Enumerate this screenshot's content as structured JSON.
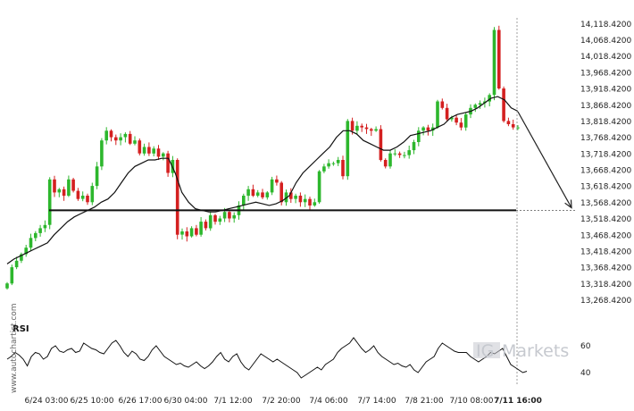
{
  "chart_data": [
    {
      "type": "candlestick",
      "title": "",
      "xlabel": "",
      "ylabel": "",
      "ylim": [
        13218.42,
        14128.42
      ],
      "yticks": [
        "14,118.4200",
        "14,068.4200",
        "14,018.4200",
        "13,968.4200",
        "13,918.4200",
        "13,868.4200",
        "13,818.4200",
        "13,768.4200",
        "13,718.4200",
        "13,668.4200",
        "13,618.4200",
        "13,568.4200",
        "13,518.4200",
        "13,468.4200",
        "13,418.4200",
        "13,368.4200",
        "13,318.4200",
        "13,268.4200"
      ],
      "xticks": [
        "6/24 03:00",
        "6/25 10:00",
        "6/26 17:00",
        "6/30 04:00",
        "7/1 12:00",
        "7/2 20:00",
        "7/4 06:00",
        "7/7 14:00",
        "7/8 21:00",
        "7/10 08:00",
        "7/11 16:00"
      ],
      "current_time_label": "7/11 16:00",
      "support_level": 13545,
      "forecast_target": 13553,
      "close_path": [
        13320,
        13370,
        13390,
        13410,
        13430,
        13460,
        13475,
        13490,
        13500,
        13640,
        13600,
        13610,
        13590,
        13640,
        13605,
        13580,
        13590,
        13570,
        13620,
        13680,
        13760,
        13790,
        13770,
        13760,
        13770,
        13780,
        13750,
        13760,
        13720,
        13740,
        13720,
        13735,
        13710,
        13720,
        13660,
        13700,
        13470,
        13480,
        13465,
        13490,
        13470,
        13510,
        13490,
        13530,
        13510,
        13520,
        13540,
        13520,
        13530,
        13560,
        13590,
        13610,
        13590,
        13600,
        13585,
        13600,
        13640,
        13630,
        13570,
        13600,
        13580,
        13590,
        13570,
        13580,
        13560,
        13570,
        13665,
        13680,
        13690,
        13690,
        13700,
        13650,
        13820,
        13790,
        13805,
        13800,
        13795,
        13790,
        13795,
        13700,
        13680,
        13720,
        13720,
        13715,
        13715,
        13730,
        13755,
        13790,
        13800,
        13790,
        13800,
        13880,
        13860,
        13825,
        13830,
        13815,
        13800,
        13840,
        13860,
        13870,
        13875,
        13880,
        13900,
        14100,
        13920,
        13820,
        13810,
        13800,
        13800
      ],
      "ma_path": [
        13380,
        13395,
        13405,
        13415,
        13425,
        13435,
        13445,
        13470,
        13490,
        13510,
        13525,
        13535,
        13545,
        13555,
        13570,
        13580,
        13600,
        13630,
        13660,
        13680,
        13690,
        13700,
        13700,
        13705,
        13705,
        13660,
        13600,
        13570,
        13550,
        13545,
        13540,
        13540,
        13545,
        13550,
        13555,
        13560,
        13565,
        13570,
        13565,
        13560,
        13565,
        13575,
        13590,
        13630,
        13660,
        13680,
        13700,
        13720,
        13740,
        13770,
        13790,
        13790,
        13780,
        13760,
        13750,
        13740,
        13730,
        13730,
        13740,
        13755,
        13775,
        13780,
        13785,
        13790,
        13800,
        13810,
        13830,
        13840,
        13845,
        13850,
        13860,
        13875,
        13890,
        13895,
        13885,
        13860,
        13850
      ],
      "rsi": {
        "label": "RSI",
        "yticks": [
          "60",
          "40"
        ],
        "ylim": [
          30,
          70
        ],
        "values": [
          50,
          52,
          55,
          53,
          50,
          45,
          52,
          55,
          54,
          50,
          52,
          58,
          60,
          56,
          55,
          57,
          58,
          55,
          56,
          62,
          60,
          58,
          57,
          55,
          54,
          58,
          62,
          64,
          60,
          55,
          52,
          56,
          54,
          50,
          49,
          52,
          57,
          60,
          56,
          52,
          50,
          48,
          46,
          47,
          45,
          44,
          46,
          48,
          45,
          43,
          45,
          48,
          52,
          55,
          50,
          48,
          52,
          54,
          48,
          44,
          42,
          46,
          50,
          54,
          52,
          50,
          48,
          50,
          48,
          46,
          44,
          42,
          40,
          36,
          38,
          40,
          42,
          44,
          42,
          46,
          48,
          50,
          55,
          58,
          60,
          62,
          66,
          62,
          58,
          55,
          57,
          60,
          55,
          52,
          50,
          48,
          46,
          47,
          45,
          44,
          46,
          42,
          40,
          44,
          48,
          50,
          52,
          58,
          62,
          60,
          58,
          56,
          55,
          55,
          55,
          52,
          50,
          48,
          50,
          52,
          55,
          54,
          56,
          58,
          52,
          46,
          44,
          42,
          40,
          41
        ]
      }
    }
  ],
  "watermark": {
    "text": "www.autochartist.com"
  },
  "logo": {
    "prefix": "IG",
    "name": "Markets"
  },
  "colors": {
    "up": "#2db72d",
    "down": "#d42020",
    "line": "#111111",
    "support": "#111111",
    "forecast": "#222222",
    "grid": "#dddddd"
  }
}
